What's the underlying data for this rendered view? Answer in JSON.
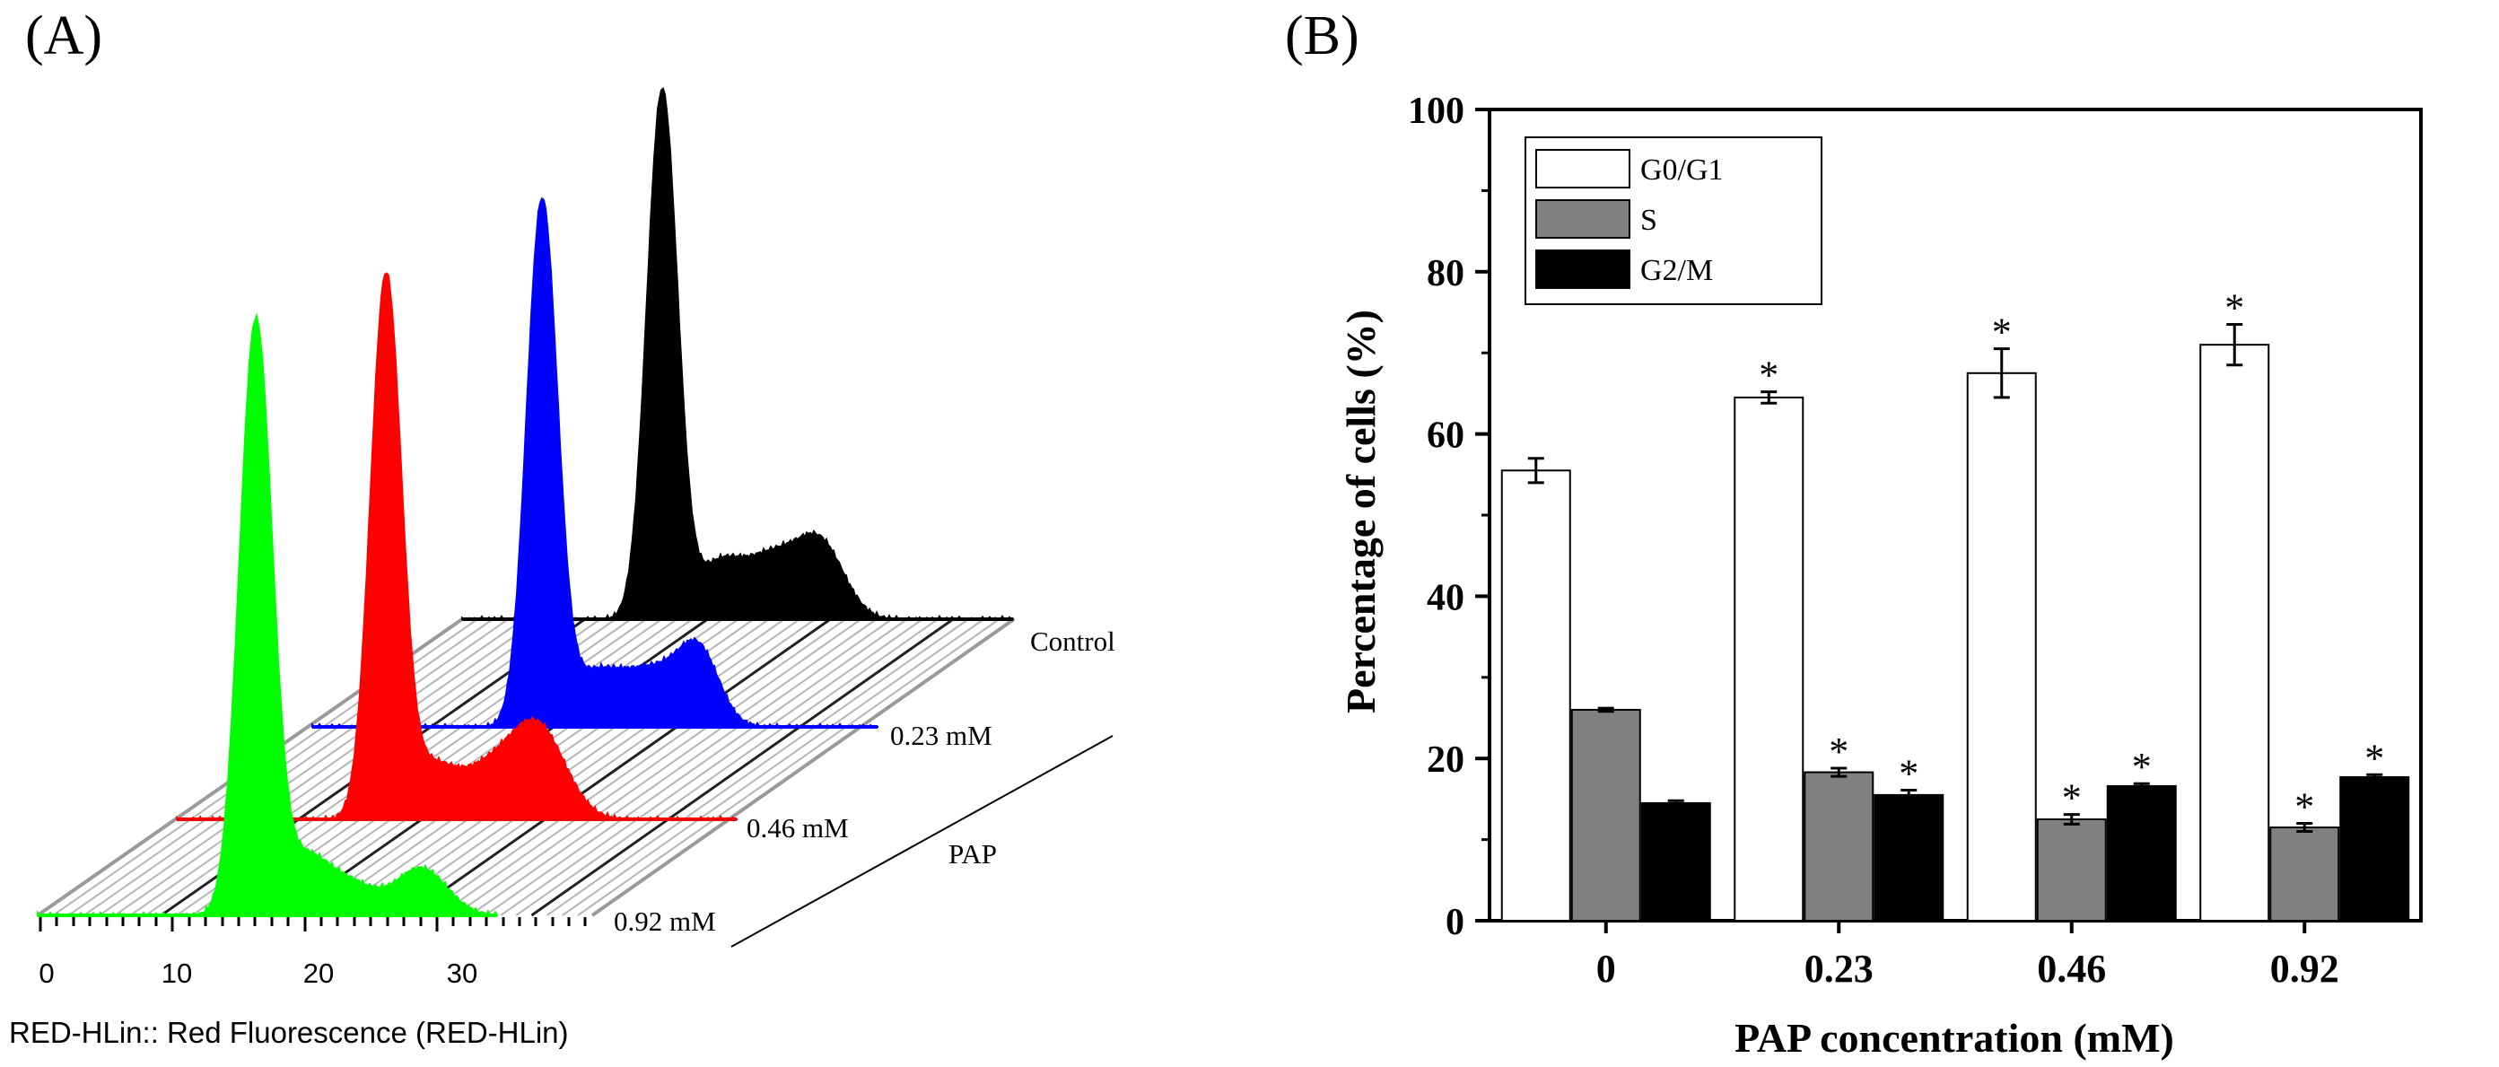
{
  "panel_a": {
    "label": "(A)",
    "xlabel": "RED-HLin:: Red Fluorescence (RED-HLin)",
    "ticks": [
      "0",
      "10",
      "20",
      "30"
    ],
    "group_label": "PAP",
    "series": [
      {
        "name": "Control",
        "label": "Control",
        "color": "#000000"
      },
      {
        "name": "0.23 mM",
        "label": "0.23 mM",
        "color": "#0000ff"
      },
      {
        "name": "0.46 mM",
        "label": "0.46 mM",
        "color": "#ff0000"
      },
      {
        "name": "0.92 mM",
        "label": "0.92 mM",
        "color": "#00ff00"
      }
    ]
  },
  "panel_b": {
    "label": "(B)",
    "chart_data": {
      "type": "bar",
      "title": "",
      "xlabel": "PAP concentration (mM)",
      "ylabel": "Percentage of cells (%)",
      "ylim": [
        0,
        100
      ],
      "yticks": [
        "0",
        "20",
        "40",
        "60",
        "80",
        "100"
      ],
      "categories": [
        "0",
        "0.23",
        "0.46",
        "0.92"
      ],
      "legend_position": "top-left",
      "significance_mark": "*",
      "series": [
        {
          "name": "G0/G1",
          "color": "#ffffff",
          "values": [
            55.5,
            64.5,
            67.5,
            71.0
          ],
          "errors": [
            1.5,
            0.7,
            3.0,
            2.5
          ],
          "significant": [
            false,
            true,
            true,
            true
          ]
        },
        {
          "name": "S",
          "color": "#808080",
          "values": [
            26.0,
            18.3,
            12.5,
            11.5
          ],
          "errors": [
            0.2,
            0.5,
            0.6,
            0.5
          ],
          "significant": [
            false,
            true,
            true,
            true
          ]
        },
        {
          "name": "G2/M",
          "color": "#000000",
          "values": [
            14.5,
            15.5,
            16.6,
            17.7
          ],
          "errors": [
            0.3,
            0.6,
            0.3,
            0.3
          ],
          "significant": [
            false,
            true,
            true,
            true
          ]
        }
      ]
    }
  }
}
